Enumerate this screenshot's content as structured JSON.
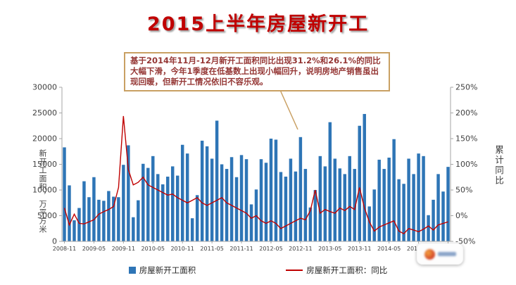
{
  "annotation": {
    "text": "基于2014年11月-12月新开工面积同比出现31.2%和26.1%的同比大幅下滑，今年1季度在低基数上出现小幅回升，说明房地产销售虽出现回暖，但新开工情况依旧不容乐观。"
  },
  "colors": {
    "bar": "#2E75B6",
    "line": "#C00000",
    "title": "#C00000",
    "callout_border": "#C9A063",
    "callout_text": "#953735",
    "axis": "#A6A6A6",
    "tick_text": "#404040"
  },
  "chart_data": {
    "type": "combo-bar-line",
    "title": "2015上半年房屋新开工",
    "ylabel_left": "新开工面积，万平方米",
    "ylabel_right": "累计同比",
    "grid": false,
    "legend_position": "bottom",
    "x_tick_every": 6,
    "left_axis": {
      "min": 0,
      "max": 30000,
      "ticks": [
        0,
        5000,
        10000,
        15000,
        20000,
        25000,
        30000
      ]
    },
    "right_axis": {
      "min": -50,
      "max": 250,
      "ticks": [
        -50,
        0,
        50,
        100,
        150,
        200,
        250
      ],
      "format": "percent"
    },
    "categories": [
      "2008-11",
      "2008-12",
      "2009-01",
      "2009-02",
      "2009-03",
      "2009-04",
      "2009-05",
      "2009-06",
      "2009-07",
      "2009-08",
      "2009-09",
      "2009-10",
      "2009-11",
      "2009-12",
      "2010-01",
      "2010-02",
      "2010-03",
      "2010-04",
      "2010-05",
      "2010-06",
      "2010-07",
      "2010-08",
      "2010-09",
      "2010-10",
      "2010-11",
      "2010-12",
      "2011-01",
      "2011-02",
      "2011-03",
      "2011-04",
      "2011-05",
      "2011-06",
      "2011-07",
      "2011-08",
      "2011-09",
      "2011-10",
      "2011-11",
      "2011-12",
      "2012-01",
      "2012-02",
      "2012-03",
      "2012-04",
      "2012-05",
      "2012-06",
      "2012-07",
      "2012-08",
      "2012-09",
      "2012-10",
      "2012-11",
      "2012-12",
      "2013-01",
      "2013-02",
      "2013-03",
      "2013-04",
      "2013-05",
      "2013-06",
      "2013-07",
      "2013-08",
      "2013-09",
      "2013-10",
      "2013-11",
      "2013-12",
      "2014-01",
      "2014-02",
      "2014-03",
      "2014-04",
      "2014-05",
      "2014-06",
      "2014-07",
      "2014-08",
      "2014-09",
      "2014-10",
      "2014-11",
      "2014-12",
      "2015-01",
      "2015-02",
      "2015-03",
      "2015-04",
      "2015-05"
    ],
    "series": [
      {
        "name": "房屋新开工面积",
        "type": "bar",
        "axis": "left",
        "unit": "万平方米",
        "values": [
          18300,
          10900,
          4100,
          6500,
          11700,
          8600,
          12500,
          8100,
          7900,
          9800,
          8700,
          8600,
          14900,
          18700,
          4700,
          8000,
          15100,
          14300,
          16600,
          13100,
          11100,
          12600,
          14600,
          12800,
          18800,
          17100,
          4500,
          9000,
          19600,
          18500,
          16100,
          23500,
          15000,
          14100,
          16400,
          12500,
          16800,
          16000,
          7200,
          10100,
          16000,
          15300,
          20000,
          19800,
          13500,
          12600,
          16100,
          13600,
          20300,
          14100,
          6600,
          10000,
          16600,
          14600,
          23200,
          16100,
          14200,
          13100,
          16600,
          14100,
          22500,
          24800,
          6800,
          10100,
          15900,
          14100,
          16300,
          19900,
          12100,
          11200,
          16100,
          13100,
          17100,
          16600,
          5100,
          8100,
          13100,
          9700,
          14500
        ]
      },
      {
        "name": "房屋新开工面积：同比",
        "type": "line",
        "axis": "right",
        "unit": "%",
        "values": [
          15,
          -18,
          3,
          -15,
          -16,
          -12,
          -8,
          3,
          8,
          12,
          18,
          55,
          194,
          90,
          60,
          65,
          75,
          60,
          55,
          50,
          45,
          40,
          42,
          35,
          30,
          25,
          30,
          35,
          25,
          20,
          25,
          30,
          35,
          25,
          20,
          15,
          10,
          5,
          -5,
          0,
          -10,
          -15,
          -10,
          -15,
          -25,
          -20,
          -15,
          -10,
          -5,
          -8,
          10,
          50,
          5,
          12,
          8,
          5,
          15,
          10,
          18,
          12,
          55,
          15,
          -12,
          -30,
          -22,
          -18,
          -14,
          -10,
          -30,
          -35,
          -25,
          -28,
          -31.2,
          -26.1,
          -20,
          -28,
          -18,
          -15,
          -12
        ]
      }
    ]
  }
}
